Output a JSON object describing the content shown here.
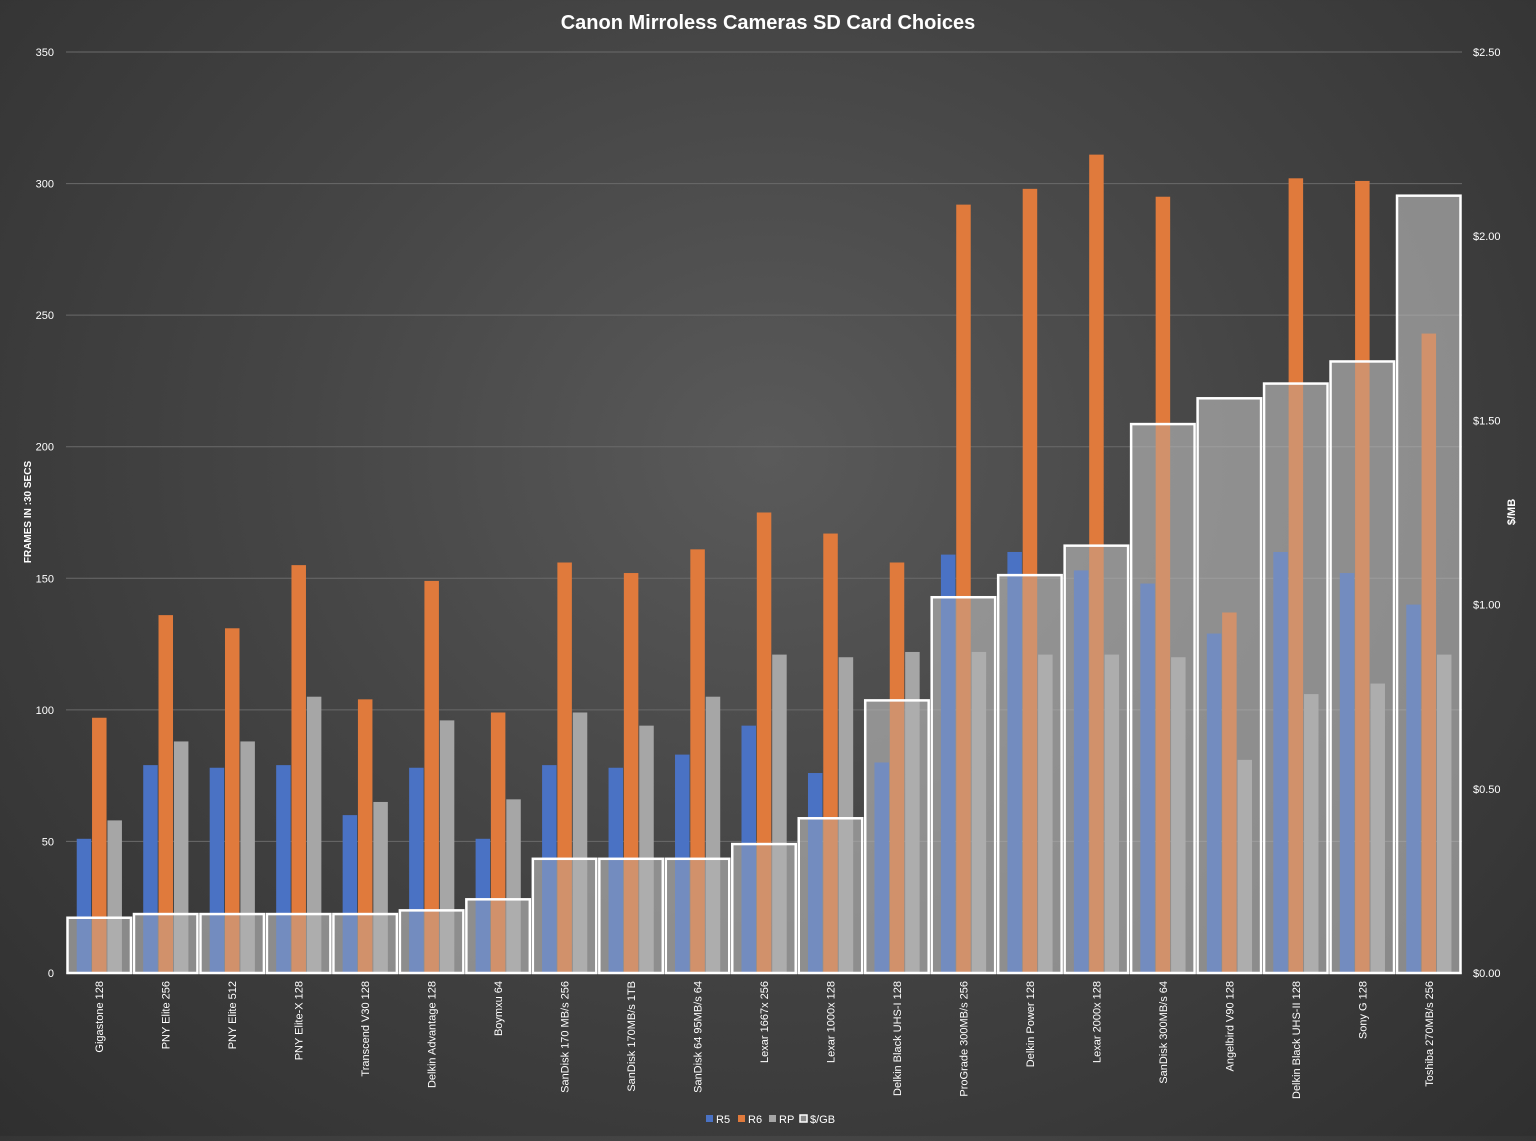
{
  "chart_data": {
    "type": "bar",
    "title": "Canon Mirroless Cameras SD Card Choices",
    "ylabel": "FRAMES IN :30 SECS",
    "y2label": "$/MB",
    "ylim": [
      0,
      350
    ],
    "y2lim": [
      0,
      2.5
    ],
    "yticks": [
      "0",
      "50",
      "100",
      "150",
      "200",
      "250",
      "300",
      "350"
    ],
    "y2ticks": [
      "$0.00",
      "$0.50",
      "$1.00",
      "$1.50",
      "$2.00",
      "$2.50"
    ],
    "categories": [
      "Gigastone 128",
      "PNY Elite 256",
      "PNY Elite 512",
      "PNY Elite-X 128",
      "Transcend V30 128",
      "Delkin Advantage 128",
      "Boymxu 64",
      "SanDisk 170 MB/s 256",
      "SanDisk 170MB/s 1TB",
      "SanDisk 64 95MB/s 64",
      "Lexar 1667x 256",
      "Lexar 1000x 128",
      "Delkin Black UHS-I 128",
      "ProGrade 300MB/s 256",
      "Delkin Power 128",
      "Lexar 2000x 128",
      "SanDisk 300MB/s 64",
      "Angelbird V90 128",
      "Delkin Black UHS-II 128",
      "Sony G 128",
      "Toshiba 270MB/s 256"
    ],
    "series": [
      {
        "name": "R5",
        "color": "#4a72c4",
        "axis": "left",
        "values": [
          51,
          79,
          78,
          79,
          60,
          78,
          51,
          79,
          78,
          83,
          94,
          76,
          80,
          159,
          160,
          153,
          148,
          129,
          160,
          152,
          140
        ]
      },
      {
        "name": "R6",
        "color": "#e07a3c",
        "axis": "left",
        "values": [
          97,
          136,
          131,
          155,
          104,
          149,
          99,
          156,
          152,
          161,
          175,
          167,
          156,
          292,
          298,
          311,
          295,
          137,
          302,
          301,
          243
        ]
      },
      {
        "name": "RP",
        "color": "#a6a6a6",
        "axis": "left",
        "values": [
          58,
          88,
          88,
          105,
          65,
          96,
          66,
          99,
          94,
          105,
          121,
          120,
          122,
          122,
          121,
          121,
          120,
          81,
          106,
          110,
          121
        ]
      },
      {
        "name": "$/GB",
        "color": "#ffffff",
        "axis": "right",
        "values": [
          0.15,
          0.16,
          0.16,
          0.16,
          0.16,
          0.17,
          0.2,
          0.31,
          0.31,
          0.31,
          0.35,
          0.42,
          0.74,
          1.02,
          1.08,
          1.16,
          1.49,
          1.56,
          1.6,
          1.66,
          2.11
        ]
      }
    ],
    "legend": "bottom-center",
    "grid": true
  }
}
